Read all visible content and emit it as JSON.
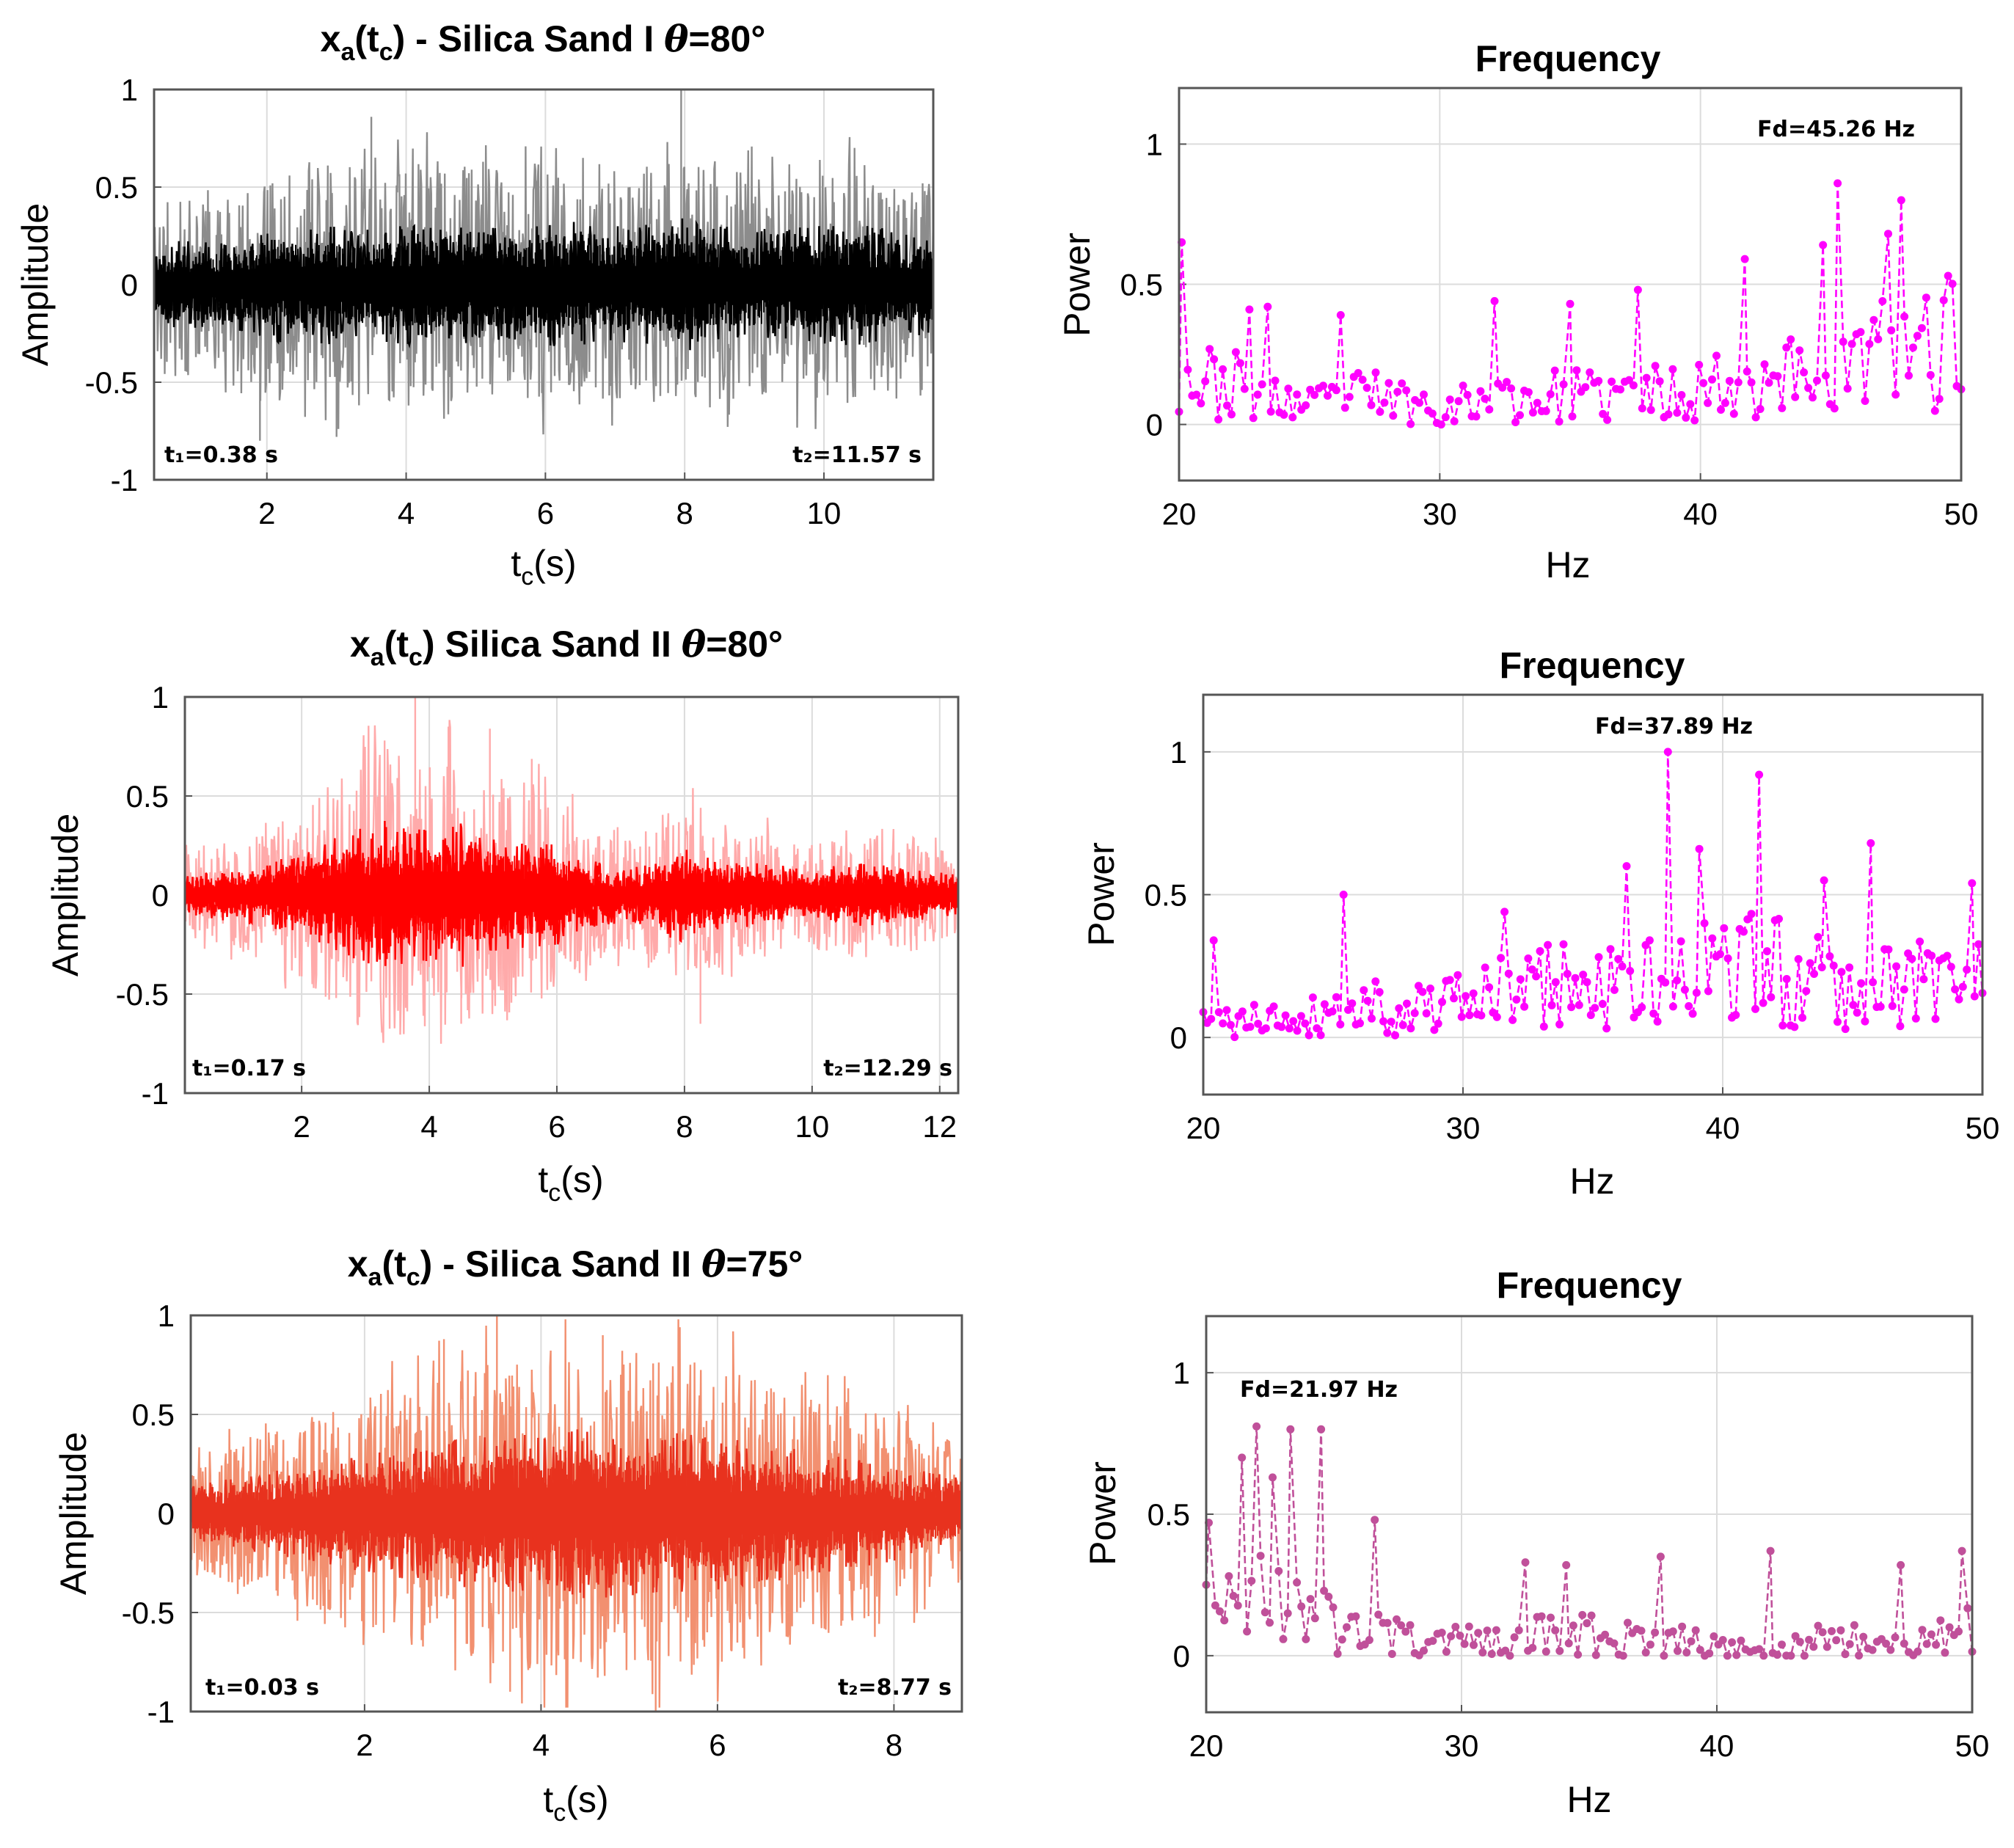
{
  "chart_data": [
    {
      "type": "line",
      "panel": "time-signal",
      "title_main": "x",
      "title_sub": "a",
      "title_open": "(t",
      "title_sub2": "c",
      "title_rest": ") - Silica Sand I ",
      "title_theta": "θ",
      "title_angle": "=80°",
      "xlabel_main": "t",
      "xlabel_sub": "c",
      "xlabel_rest": "(s)",
      "ylabel": "Amplitude",
      "xlim": [
        0.38,
        11.57
      ],
      "ylim": [
        -1,
        1
      ],
      "xticks": [
        2,
        4,
        6,
        8,
        10
      ],
      "xtick_labels": [
        "2",
        "4",
        "6",
        "8",
        "10"
      ],
      "yticks": [
        -1,
        -0.5,
        0,
        0.5,
        1
      ],
      "ytick_labels": [
        "-1",
        "-0.5",
        "0",
        "0.5",
        "1"
      ],
      "t1_label": "t₁=0.38 s",
      "t2_label": "t₂=11.57 s",
      "color": "#000000",
      "light_color": "#8c8c8c",
      "envelope": [
        0.42,
        0.45,
        0.44,
        0.46,
        0.52,
        0.6,
        0.58,
        0.62,
        0.56,
        0.6,
        0.62,
        0.64,
        0.6,
        0.62,
        0.58,
        0.62,
        0.64,
        0.66,
        0.62,
        0.58,
        0.64,
        0.68,
        0.66,
        0.6,
        0.58,
        0.56,
        0.62,
        0.6,
        0.64,
        0.58,
        0.52,
        0.56
      ],
      "peaks": [
        {
          "x": 7.95,
          "y": 1.0
        },
        {
          "x": 3.5,
          "y": 0.86
        },
        {
          "x": 3.0,
          "y": -0.78
        },
        {
          "x": 1.9,
          "y": -0.8
        }
      ],
      "seed": 11
    },
    {
      "type": "line",
      "panel": "spectrum",
      "title": "Frequency",
      "xlabel": "Hz",
      "ylabel": "Power",
      "xlim": [
        20,
        50
      ],
      "ylim": [
        -0.2,
        1.2
      ],
      "xticks": [
        20,
        30,
        40,
        50
      ],
      "xtick_labels": [
        "20",
        "30",
        "40",
        "50"
      ],
      "yticks": [
        0,
        0.5,
        1
      ],
      "ytick_labels": [
        "0",
        "0.5",
        "1"
      ],
      "annotation": "Fd=45.26 Hz",
      "dominant_frequency": 45.26,
      "color": "#ff00ff",
      "n_points": 180,
      "envelope": [
        0.26,
        0.24,
        0.22,
        0.16,
        0.12,
        0.16,
        0.18,
        0.14,
        0.12,
        0.14,
        0.16,
        0.16,
        0.18,
        0.16,
        0.2,
        0.18,
        0.22,
        0.24,
        0.28,
        0.28,
        0.26,
        0.36,
        0.38,
        0.42,
        0.44
      ],
      "peaks": [
        {
          "x": 45.26,
          "y": 0.86
        },
        {
          "x": 47.7,
          "y": 0.8
        },
        {
          "x": 47.2,
          "y": 0.68
        },
        {
          "x": 44.7,
          "y": 0.64
        },
        {
          "x": 20.1,
          "y": 0.65
        },
        {
          "x": 41.7,
          "y": 0.59
        },
        {
          "x": 49.5,
          "y": 0.53
        },
        {
          "x": 37.6,
          "y": 0.48
        },
        {
          "x": 32.1,
          "y": 0.44
        },
        {
          "x": 35.0,
          "y": 0.43
        },
        {
          "x": 23.4,
          "y": 0.42
        },
        {
          "x": 22.7,
          "y": 0.41
        },
        {
          "x": 26.2,
          "y": 0.39
        }
      ],
      "seed": 23
    },
    {
      "type": "line",
      "panel": "time-signal",
      "title_main": "x",
      "title_sub": "a",
      "title_open": "(t",
      "title_sub2": "c",
      "title_rest": ") Silica Sand II ",
      "title_theta": "θ",
      "title_angle": "=80°",
      "xlabel_main": "t",
      "xlabel_sub": "c",
      "xlabel_rest": "(s)",
      "ylabel": "Amplitude",
      "xlim": [
        0.17,
        12.29
      ],
      "ylim": [
        -1,
        1
      ],
      "xticks": [
        2,
        4,
        6,
        8,
        10,
        12
      ],
      "xtick_labels": [
        "2",
        "4",
        "6",
        "8",
        "10",
        "12"
      ],
      "yticks": [
        -1,
        -0.5,
        0,
        0.5,
        1
      ],
      "ytick_labels": [
        "-1",
        "-0.5",
        "0",
        "0.5",
        "1"
      ],
      "t1_label": "t₁=0.17 s",
      "t2_label": "t₂=12.29 s",
      "color": "#ff0000",
      "light_color": "#ffaaaa",
      "envelope": [
        0.22,
        0.24,
        0.28,
        0.32,
        0.38,
        0.46,
        0.58,
        0.68,
        0.76,
        0.7,
        0.66,
        0.74,
        0.66,
        0.6,
        0.56,
        0.5,
        0.38,
        0.3,
        0.28,
        0.4,
        0.48,
        0.4,
        0.34,
        0.32,
        0.3,
        0.26,
        0.3,
        0.32,
        0.3,
        0.26,
        0.24,
        0.2
      ],
      "peaks": [
        {
          "x": 3.78,
          "y": 1.0
        },
        {
          "x": 4.3,
          "y": 0.85
        },
        {
          "x": 3.3,
          "y": 0.78
        },
        {
          "x": 4.95,
          "y": 0.84
        },
        {
          "x": 4.5,
          "y": -0.65
        },
        {
          "x": 8.25,
          "y": -0.65
        }
      ],
      "seed": 37
    },
    {
      "type": "line",
      "panel": "spectrum",
      "title": "Frequency",
      "xlabel": "Hz",
      "ylabel": "Power",
      "xlim": [
        20,
        50
      ],
      "ylim": [
        -0.2,
        1.2
      ],
      "xticks": [
        20,
        30,
        40,
        50
      ],
      "xtick_labels": [
        "20",
        "30",
        "40",
        "50"
      ],
      "yticks": [
        0,
        0.5,
        1
      ],
      "ytick_labels": [
        "0",
        "0.5",
        "1"
      ],
      "annotation": "Fd=37.89 Hz",
      "dominant_frequency": 37.89,
      "color": "#ff00ff",
      "n_points": 200,
      "envelope": [
        0.1,
        0.1,
        0.12,
        0.14,
        0.16,
        0.2,
        0.18,
        0.18,
        0.2,
        0.24,
        0.28,
        0.3,
        0.28,
        0.26,
        0.3,
        0.34,
        0.36,
        0.38,
        0.36,
        0.34,
        0.3,
        0.3,
        0.32,
        0.34,
        0.3
      ],
      "peaks": [
        {
          "x": 37.89,
          "y": 1.0
        },
        {
          "x": 41.4,
          "y": 0.92
        },
        {
          "x": 39.1,
          "y": 0.66
        },
        {
          "x": 45.7,
          "y": 0.68
        },
        {
          "x": 36.3,
          "y": 0.6
        },
        {
          "x": 25.4,
          "y": 0.5
        },
        {
          "x": 49.6,
          "y": 0.54
        },
        {
          "x": 43.9,
          "y": 0.55
        },
        {
          "x": 31.6,
          "y": 0.44
        },
        {
          "x": 20.4,
          "y": 0.34
        }
      ],
      "seed": 41
    },
    {
      "type": "line",
      "panel": "time-signal",
      "title_main": "x",
      "title_sub": "a",
      "title_open": "(t",
      "title_sub2": "c",
      "title_rest": ") - Silica Sand II ",
      "title_theta": "θ",
      "title_angle": "=75°",
      "xlabel_main": "t",
      "xlabel_sub": "c",
      "xlabel_rest": "(s)",
      "ylabel": "Amplitude",
      "xlim": [
        0.03,
        8.77
      ],
      "ylim": [
        -1,
        1
      ],
      "xticks": [
        2,
        4,
        6,
        8
      ],
      "xtick_labels": [
        "2",
        "4",
        "6",
        "8"
      ],
      "yticks": [
        -1,
        -0.5,
        0,
        0.5,
        1
      ],
      "ytick_labels": [
        "-1",
        "-0.5",
        "0",
        "0.5",
        "1"
      ],
      "t1_label": "t₁=0.03 s",
      "t2_label": "t₂=8.77 s",
      "color": "#e8321e",
      "light_color": "#f29070",
      "envelope": [
        0.28,
        0.34,
        0.4,
        0.46,
        0.52,
        0.58,
        0.64,
        0.7,
        0.74,
        0.78,
        0.82,
        0.86,
        0.86,
        0.84,
        0.82,
        0.8,
        0.76,
        0.72,
        0.66,
        0.6,
        0.54,
        0.48,
        0.42,
        0.36
      ],
      "peaks": [
        {
          "x": 3.5,
          "y": 1.0
        },
        {
          "x": 3.65,
          "y": -0.9
        },
        {
          "x": 4.7,
          "y": 0.9
        },
        {
          "x": 5.3,
          "y": -1.0
        },
        {
          "x": 2.9,
          "y": 0.88
        }
      ],
      "seed": 53
    },
    {
      "type": "line",
      "panel": "spectrum",
      "title": "Frequency",
      "xlabel": "Hz",
      "ylabel": "Power",
      "xlim": [
        20,
        50
      ],
      "ylim": [
        -0.2,
        1.2
      ],
      "xticks": [
        20,
        30,
        40,
        50
      ],
      "xtick_labels": [
        "20",
        "30",
        "40",
        "50"
      ],
      "yticks": [
        0,
        0.5,
        1
      ],
      "ytick_labels": [
        "0",
        "0.5",
        "1"
      ],
      "annotation": "Fd=21.97 Hz",
      "dominant_frequency": 21.97,
      "color": "#c0509a",
      "n_points": 170,
      "envelope": [
        0.22,
        0.34,
        0.36,
        0.34,
        0.18,
        0.14,
        0.12,
        0.1,
        0.1,
        0.1,
        0.12,
        0.14,
        0.14,
        0.12,
        0.1,
        0.1,
        0.08,
        0.06,
        0.06,
        0.1,
        0.12,
        0.1,
        0.1,
        0.12,
        0.16
      ],
      "peaks": [
        {
          "x": 21.97,
          "y": 0.81
        },
        {
          "x": 23.3,
          "y": 0.8
        },
        {
          "x": 24.5,
          "y": 0.8
        },
        {
          "x": 21.4,
          "y": 0.7
        },
        {
          "x": 22.6,
          "y": 0.63
        },
        {
          "x": 26.6,
          "y": 0.48
        },
        {
          "x": 20.1,
          "y": 0.47
        },
        {
          "x": 37.8,
          "y": 0.35
        },
        {
          "x": 42.1,
          "y": 0.37
        },
        {
          "x": 49.6,
          "y": 0.37
        },
        {
          "x": 47.2,
          "y": 0.32
        },
        {
          "x": 32.5,
          "y": 0.33
        },
        {
          "x": 34.1,
          "y": 0.32
        }
      ],
      "seed": 67
    }
  ]
}
